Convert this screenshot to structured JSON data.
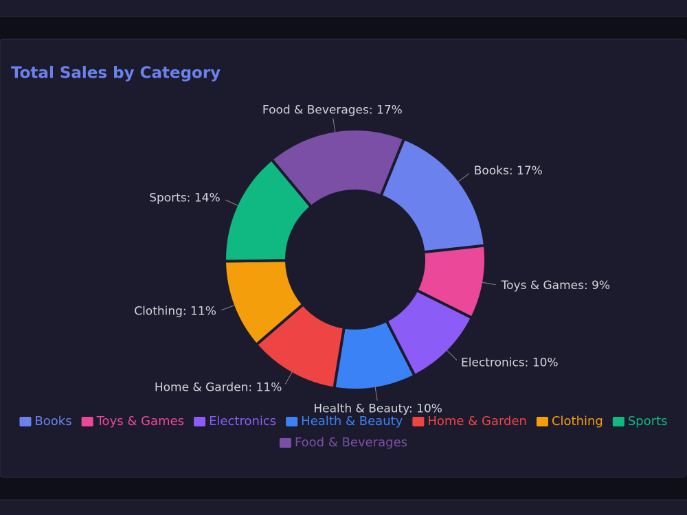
{
  "chart_data": {
    "type": "pie",
    "title": "Total Sales by Category",
    "donut": true,
    "categories": [
      "Books",
      "Toys & Games",
      "Electronics",
      "Health & Beauty",
      "Home & Garden",
      "Clothing",
      "Sports",
      "Food & Beverages"
    ],
    "values": [
      17,
      9,
      10,
      10,
      11,
      11,
      14,
      17
    ],
    "value_labels": [
      "Books: 17%",
      "Toys & Games: 9%",
      "Electronics: 10%",
      "Health & Beauty: 10%",
      "Home & Garden: 11%",
      "Clothing: 11%",
      "Sports: 14%",
      "Food & Beverages: 17%"
    ],
    "colors": [
      "#6b82ee",
      "#ec4899",
      "#8b5cf6",
      "#3b82f6",
      "#ef4444",
      "#f59e0b",
      "#10b981",
      "#7b4fa6"
    ],
    "legend": "bottom"
  }
}
